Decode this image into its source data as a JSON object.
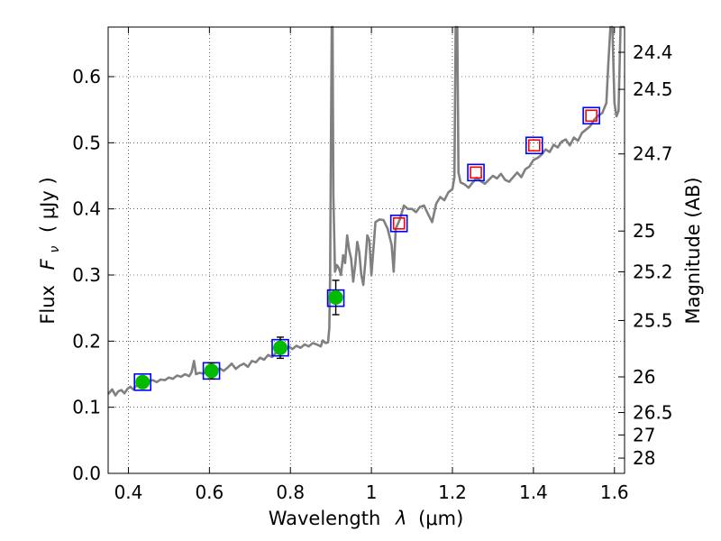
{
  "chart_data": {
    "type": "scatter",
    "xlabel_main": "Wavelength",
    "xlabel_symbol": "λ",
    "xlabel_unit": "(μm)",
    "ylabel_main": "Flux",
    "ylabel_symbol": "F",
    "ylabel_sub": "ν",
    "ylabel_unit": "( μJy )",
    "ylabel_right": "Magnitude (AB)",
    "xlim": [
      0.35,
      1.625
    ],
    "ylim": [
      0.0,
      0.675
    ],
    "grid": true,
    "x_ticks": [
      {
        "value": 0.4,
        "label": "0.4"
      },
      {
        "value": 0.6,
        "label": "0.6"
      },
      {
        "value": 0.8,
        "label": "0.8"
      },
      {
        "value": 1.0,
        "label": "1"
      },
      {
        "value": 1.2,
        "label": "1.2"
      },
      {
        "value": 1.4,
        "label": "1.4"
      },
      {
        "value": 1.6,
        "label": "1.6"
      }
    ],
    "y_ticks": [
      {
        "value": 0.0,
        "label": "0.0"
      },
      {
        "value": 0.1,
        "label": "0.1"
      },
      {
        "value": 0.2,
        "label": "0.2"
      },
      {
        "value": 0.3,
        "label": "0.3"
      },
      {
        "value": 0.4,
        "label": "0.4"
      },
      {
        "value": 0.5,
        "label": "0.5"
      },
      {
        "value": 0.6,
        "label": "0.6"
      }
    ],
    "mag_ticks": [
      {
        "label": "24.4",
        "flux": 0.6368
      },
      {
        "label": "24.5",
        "flux": 0.5808
      },
      {
        "label": "24.7",
        "flux": 0.4831
      },
      {
        "label": "25",
        "flux": 0.3665
      },
      {
        "label": "25.2",
        "flux": 0.3048
      },
      {
        "label": "25.5",
        "flux": 0.2312
      },
      {
        "label": "26",
        "flux": 0.1459
      },
      {
        "label": "26.5",
        "flux": 0.092
      },
      {
        "label": "27",
        "flux": 0.0581
      },
      {
        "label": "28",
        "flux": 0.0231
      }
    ],
    "series": [
      {
        "type": "line",
        "color": "#808080",
        "points": [
          [
            0.35,
            0.12
          ],
          [
            0.36,
            0.127
          ],
          [
            0.368,
            0.118
          ],
          [
            0.375,
            0.124
          ],
          [
            0.383,
            0.126
          ],
          [
            0.39,
            0.121
          ],
          [
            0.398,
            0.128
          ],
          [
            0.405,
            0.131
          ],
          [
            0.412,
            0.127
          ],
          [
            0.42,
            0.133
          ],
          [
            0.428,
            0.136
          ],
          [
            0.435,
            0.139
          ],
          [
            0.443,
            0.136
          ],
          [
            0.45,
            0.14
          ],
          [
            0.46,
            0.141
          ],
          [
            0.47,
            0.138
          ],
          [
            0.48,
            0.142
          ],
          [
            0.49,
            0.141
          ],
          [
            0.5,
            0.145
          ],
          [
            0.51,
            0.143
          ],
          [
            0.52,
            0.148
          ],
          [
            0.53,
            0.146
          ],
          [
            0.54,
            0.15
          ],
          [
            0.55,
            0.147
          ],
          [
            0.556,
            0.153
          ],
          [
            0.562,
            0.17
          ],
          [
            0.567,
            0.15
          ],
          [
            0.575,
            0.152
          ],
          [
            0.585,
            0.151
          ],
          [
            0.595,
            0.154
          ],
          [
            0.605,
            0.156
          ],
          [
            0.615,
            0.152
          ],
          [
            0.625,
            0.159
          ],
          [
            0.635,
            0.155
          ],
          [
            0.645,
            0.16
          ],
          [
            0.655,
            0.166
          ],
          [
            0.665,
            0.158
          ],
          [
            0.675,
            0.163
          ],
          [
            0.685,
            0.166
          ],
          [
            0.695,
            0.161
          ],
          [
            0.705,
            0.17
          ],
          [
            0.715,
            0.168
          ],
          [
            0.725,
            0.175
          ],
          [
            0.735,
            0.172
          ],
          [
            0.745,
            0.179
          ],
          [
            0.755,
            0.176
          ],
          [
            0.765,
            0.183
          ],
          [
            0.775,
            0.186
          ],
          [
            0.785,
            0.184
          ],
          [
            0.795,
            0.192
          ],
          [
            0.805,
            0.188
          ],
          [
            0.815,
            0.193
          ],
          [
            0.825,
            0.19
          ],
          [
            0.835,
            0.195
          ],
          [
            0.845,
            0.192
          ],
          [
            0.855,
            0.197
          ],
          [
            0.865,
            0.195
          ],
          [
            0.875,
            0.192
          ],
          [
            0.88,
            0.201
          ],
          [
            0.887,
            0.197
          ],
          [
            0.893,
            0.198
          ],
          [
            0.896,
            0.22
          ],
          [
            0.898,
            0.3
          ],
          [
            0.9,
            0.5
          ],
          [
            0.902,
            0.675
          ],
          [
            0.904,
            0.675
          ],
          [
            0.906,
            0.42
          ],
          [
            0.91,
            0.305
          ],
          [
            0.915,
            0.315
          ],
          [
            0.92,
            0.31
          ],
          [
            0.925,
            0.3
          ],
          [
            0.93,
            0.33
          ],
          [
            0.935,
            0.318
          ],
          [
            0.94,
            0.36
          ],
          [
            0.945,
            0.338
          ],
          [
            0.95,
            0.325
          ],
          [
            0.955,
            0.29
          ],
          [
            0.96,
            0.315
          ],
          [
            0.965,
            0.35
          ],
          [
            0.97,
            0.335
          ],
          [
            0.975,
            0.3
          ],
          [
            0.98,
            0.285
          ],
          [
            0.985,
            0.32
          ],
          [
            0.99,
            0.36
          ],
          [
            0.995,
            0.352
          ],
          [
            1.0,
            0.3
          ],
          [
            1.005,
            0.34
          ],
          [
            1.01,
            0.38
          ],
          [
            1.02,
            0.384
          ],
          [
            1.03,
            0.383
          ],
          [
            1.04,
            0.37
          ],
          [
            1.05,
            0.345
          ],
          [
            1.055,
            0.305
          ],
          [
            1.06,
            0.37
          ],
          [
            1.07,
            0.384
          ],
          [
            1.08,
            0.405
          ],
          [
            1.09,
            0.4
          ],
          [
            1.1,
            0.4
          ],
          [
            1.11,
            0.395
          ],
          [
            1.12,
            0.403
          ],
          [
            1.13,
            0.405
          ],
          [
            1.14,
            0.392
          ],
          [
            1.15,
            0.38
          ],
          [
            1.16,
            0.408
          ],
          [
            1.17,
            0.418
          ],
          [
            1.18,
            0.413
          ],
          [
            1.19,
            0.425
          ],
          [
            1.2,
            0.43
          ],
          [
            1.205,
            0.448
          ],
          [
            1.208,
            0.675
          ],
          [
            1.212,
            0.675
          ],
          [
            1.215,
            0.455
          ],
          [
            1.22,
            0.44
          ],
          [
            1.23,
            0.437
          ],
          [
            1.24,
            0.432
          ],
          [
            1.25,
            0.44
          ],
          [
            1.26,
            0.447
          ],
          [
            1.27,
            0.442
          ],
          [
            1.28,
            0.438
          ],
          [
            1.29,
            0.444
          ],
          [
            1.3,
            0.45
          ],
          [
            1.31,
            0.446
          ],
          [
            1.32,
            0.453
          ],
          [
            1.33,
            0.444
          ],
          [
            1.34,
            0.441
          ],
          [
            1.35,
            0.448
          ],
          [
            1.36,
            0.455
          ],
          [
            1.37,
            0.448
          ],
          [
            1.38,
            0.46
          ],
          [
            1.39,
            0.464
          ],
          [
            1.4,
            0.474
          ],
          [
            1.41,
            0.477
          ],
          [
            1.42,
            0.482
          ],
          [
            1.43,
            0.49
          ],
          [
            1.44,
            0.486
          ],
          [
            1.45,
            0.497
          ],
          [
            1.46,
            0.493
          ],
          [
            1.47,
            0.502
          ],
          [
            1.48,
            0.505
          ],
          [
            1.49,
            0.496
          ],
          [
            1.5,
            0.508
          ],
          [
            1.51,
            0.503
          ],
          [
            1.52,
            0.515
          ],
          [
            1.53,
            0.52
          ],
          [
            1.54,
            0.525
          ],
          [
            1.55,
            0.535
          ],
          [
            1.56,
            0.541
          ],
          [
            1.57,
            0.545
          ],
          [
            1.58,
            0.56
          ],
          [
            1.585,
            0.62
          ],
          [
            1.59,
            0.675
          ],
          [
            1.595,
            0.675
          ],
          [
            1.6,
            0.56
          ],
          [
            1.605,
            0.54
          ],
          [
            1.61,
            0.548
          ],
          [
            1.615,
            0.675
          ],
          [
            1.625,
            0.675
          ]
        ]
      },
      {
        "type": "markers",
        "marker": "square",
        "edgecolor": "#0000ff",
        "points": [
          [
            0.435,
            0.138
          ],
          [
            0.605,
            0.155
          ],
          [
            0.775,
            0.19
          ],
          [
            0.912,
            0.265
          ],
          [
            1.068,
            0.378
          ],
          [
            1.258,
            0.455
          ],
          [
            1.402,
            0.496
          ],
          [
            1.543,
            0.541
          ]
        ]
      },
      {
        "type": "markers",
        "marker": "square",
        "edgecolor": "#ff0000",
        "points": [
          [
            1.068,
            0.378
          ],
          [
            1.258,
            0.455
          ],
          [
            1.402,
            0.496
          ],
          [
            1.543,
            0.541
          ]
        ]
      },
      {
        "type": "errorbar",
        "marker": "circle",
        "color": "#00bb00",
        "points": [
          {
            "x": 0.435,
            "y": 0.138,
            "yerr": 0.006
          },
          {
            "x": 0.605,
            "y": 0.155,
            "yerr": 0.012
          },
          {
            "x": 0.775,
            "y": 0.19,
            "yerr": 0.016
          },
          {
            "x": 0.912,
            "y": 0.266,
            "yerr": 0.026
          }
        ]
      }
    ]
  }
}
